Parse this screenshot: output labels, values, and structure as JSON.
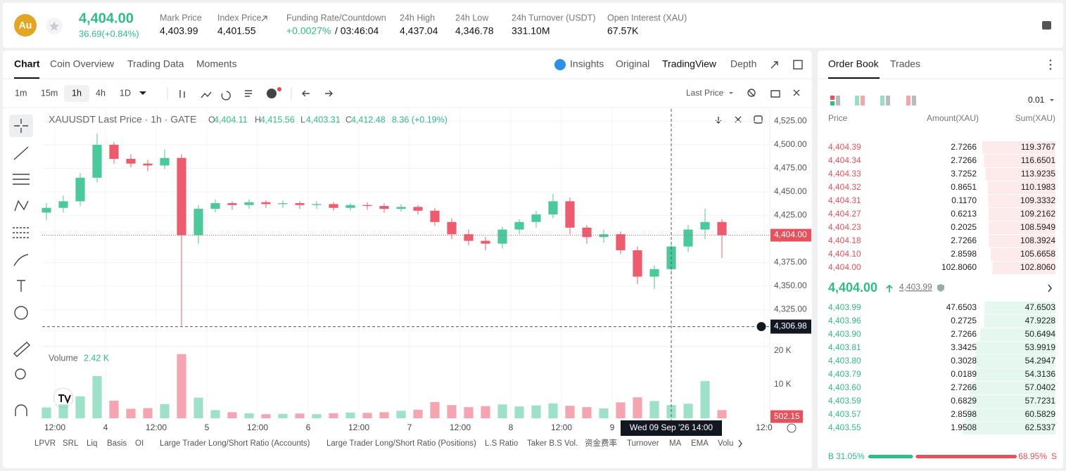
{
  "header": {
    "symbol": "Au",
    "price": "4,404.00",
    "change": "36.69(+0.84%)",
    "stats": [
      {
        "label": "Mark Price",
        "value": "4,403.99"
      },
      {
        "label": "Index Price",
        "value": "4,401.55"
      },
      {
        "label": "Funding Rate/Countdown",
        "value": "+0.0027%",
        "extra": "/ 03:46:04"
      },
      {
        "label": "24h High",
        "value": "4,437.04"
      },
      {
        "label": "24h Low",
        "value": "4,346.78"
      },
      {
        "label": "24h Turnover (USDT)",
        "value": "331.10M"
      },
      {
        "label": "Open Interest (XAU)",
        "value": "67.57K"
      }
    ]
  },
  "chart_tabs": [
    "Chart",
    "Coin Overview",
    "Trading Data",
    "Moments"
  ],
  "view_tabs": [
    "Insights",
    "Original",
    "TradingView",
    "Depth"
  ],
  "intervals": [
    "1m",
    "15m",
    "1h",
    "4h",
    "1D"
  ],
  "price_source": "Last Price",
  "chart": {
    "legend": "XAUUSDT Last Price · 1h · GATE",
    "ohlc": [
      {
        "key": "O",
        "value": "4,404.11"
      },
      {
        "key": "H",
        "value": "4,415.56"
      },
      {
        "key": "L",
        "value": "4,403.31"
      },
      {
        "key": "C",
        "value": "4,412.48"
      }
    ],
    "change": "8.36 (+0.19%)",
    "candles": {
      "x": [
        10,
        14,
        18,
        22,
        26,
        30,
        34,
        38,
        42,
        46,
        50,
        54,
        58,
        62,
        66,
        70,
        74,
        78,
        82,
        86,
        90,
        94,
        98,
        102,
        106,
        110,
        114,
        118,
        122,
        126,
        130,
        134,
        138,
        142,
        146,
        150,
        154,
        158,
        162,
        166,
        170
      ],
      "open": [
        4428,
        4433,
        4440,
        4465,
        4500,
        4485,
        4480,
        4478,
        4486,
        4404,
        4432,
        4438,
        4436,
        4439,
        4437,
        4438,
        4436,
        4437,
        4433,
        4436,
        4435,
        4432,
        4434,
        4430,
        4418,
        4405,
        4398,
        4395,
        4410,
        4418,
        4426,
        4440,
        4412,
        4402,
        4405,
        4388,
        4360,
        4368,
        4392,
        4410,
        4418
      ],
      "high": [
        4438,
        4446,
        4470,
        4512,
        4503,
        4490,
        4484,
        4495,
        4490,
        4436,
        4442,
        4440,
        4442,
        4441,
        4441,
        4440,
        4440,
        4439,
        4438,
        4439,
        4438,
        4437,
        4436,
        4433,
        4422,
        4410,
        4402,
        4413,
        4421,
        4430,
        4448,
        4444,
        4415,
        4410,
        4408,
        4392,
        4372,
        4396,
        4415,
        4432,
        4421
      ],
      "low": [
        4420,
        4428,
        4435,
        4460,
        4480,
        4476,
        4472,
        4474,
        4308,
        4395,
        4428,
        4431,
        4432,
        4433,
        4433,
        4432,
        4432,
        4430,
        4430,
        4431,
        4428,
        4429,
        4426,
        4414,
        4400,
        4393,
        4388,
        4390,
        4405,
        4412,
        4422,
        4405,
        4395,
        4396,
        4384,
        4352,
        4347,
        4362,
        4386,
        4400,
        4380
      ],
      "close": [
        4433,
        4440,
        4465,
        4500,
        4485,
        4480,
        4478,
        4486,
        4404,
        4432,
        4438,
        4436,
        4439,
        4437,
        4438,
        4436,
        4437,
        4433,
        4436,
        4435,
        4432,
        4434,
        4430,
        4418,
        4405,
        4398,
        4395,
        4410,
        4418,
        4426,
        4440,
        4412,
        4402,
        4405,
        4388,
        4360,
        4368,
        4392,
        4410,
        4418,
        4404
      ],
      "volume": [
        3200,
        4100,
        6500,
        12500,
        5200,
        2800,
        3000,
        4200,
        19000,
        6100,
        2400,
        1800,
        1500,
        1200,
        1300,
        1400,
        1200,
        1500,
        1700,
        1600,
        1800,
        2200,
        2500,
        4800,
        3900,
        3300,
        3600,
        4100,
        3500,
        3800,
        4400,
        3700,
        3300,
        2900,
        4700,
        6200,
        5100,
        3900,
        4300,
        11000,
        2420
      ]
    },
    "up_color": "#4cc99a",
    "down_color": "#ec5b6e",
    "xlim": [
      9,
      181
    ],
    "ylim": [
      4288,
      4538
    ],
    "xticks": [
      {
        "value": 12,
        "label": "12:00"
      },
      {
        "value": 24,
        "label": "4"
      },
      {
        "value": 36,
        "label": "12:00"
      },
      {
        "value": 48,
        "label": "5"
      },
      {
        "value": 60,
        "label": "12:00"
      },
      {
        "value": 72,
        "label": "6"
      },
      {
        "value": 84,
        "label": "12:00"
      },
      {
        "value": 96,
        "label": "7"
      },
      {
        "value": 108,
        "label": "12:00"
      },
      {
        "value": 120,
        "label": "8"
      },
      {
        "value": 132,
        "label": "12:00"
      },
      {
        "value": 144,
        "label": "9"
      },
      {
        "value": 180,
        "label": "12:0"
      }
    ],
    "yticks": [
      {
        "value": 4325,
        "label": "4,325.00"
      },
      {
        "value": 4350,
        "label": "4,350.00"
      },
      {
        "value": 4375,
        "label": "4,375.00"
      },
      {
        "value": 4400,
        "label": "4,400.00"
      },
      {
        "value": 4425,
        "label": "4,425.00"
      },
      {
        "value": 4450,
        "label": "4,450.00"
      },
      {
        "value": 4475,
        "label": "4,475.00"
      },
      {
        "value": 4500,
        "label": "4,500.00"
      },
      {
        "value": 4525,
        "label": "4,525.00"
      }
    ],
    "last_price": {
      "value": 4404,
      "label": "4,404.00"
    },
    "crosshair": {
      "x": {
        "value": 158,
        "label": "Wed 09 Sep '26   14:00"
      },
      "y": {
        "value": 4306.98,
        "label": "4,306.98"
      }
    },
    "volume_title": "Volume",
    "volume_value": "2.42 K",
    "vlim": [
      0,
      20800
    ],
    "vticks": [
      {
        "value": 10000,
        "label": "10 K"
      },
      {
        "value": 20000,
        "label": "20 K"
      }
    ],
    "volume_last": {
      "value": 502.15,
      "label": "502.15"
    },
    "grid": true
  },
  "indicators": [
    "LPVR",
    "SRL",
    "Liq",
    "Basis",
    "OI",
    "Large Trader Long/Short Ratio (Accounts)",
    "Large Trader Long/Short Ratio (Positions)",
    "L.S Ratio",
    "Taker B.S Vol.",
    "资金费率",
    "Turnover",
    "MA",
    "EMA",
    "Volu"
  ],
  "order_book": {
    "tabs": [
      "Order Book",
      "Trades"
    ],
    "precision": "0.01",
    "columns": [
      "Price",
      "Amount(XAU)",
      "Sum(XAU)"
    ],
    "asks": [
      [
        "4,404.39",
        "2.7266",
        "119.3767"
      ],
      [
        "4,404.34",
        "2.7266",
        "116.6501"
      ],
      [
        "4,404.33",
        "3.7252",
        "113.9235"
      ],
      [
        "4,404.32",
        "0.8651",
        "110.1983"
      ],
      [
        "4,404.31",
        "0.1170",
        "109.3332"
      ],
      [
        "4,404.27",
        "0.6213",
        "109.2162"
      ],
      [
        "4,404.23",
        "0.2025",
        "108.5949"
      ],
      [
        "4,404.18",
        "2.7266",
        "108.3924"
      ],
      [
        "4,404.10",
        "2.8598",
        "105.6658"
      ],
      [
        "4,404.00",
        "102.8060",
        "102.8060"
      ]
    ],
    "mid_price": "4,404.00",
    "mark_price": "4,403.99",
    "bids": [
      [
        "4,403.99",
        "47.6503",
        "47.6503"
      ],
      [
        "4,403.96",
        "0.2725",
        "47.9228"
      ],
      [
        "4,403.90",
        "2.7266",
        "50.6494"
      ],
      [
        "4,403.81",
        "3.3425",
        "53.9919"
      ],
      [
        "4,403.80",
        "0.3028",
        "54.2947"
      ],
      [
        "4,403.79",
        "0.0189",
        "54.3136"
      ],
      [
        "4,403.60",
        "2.7266",
        "57.0402"
      ],
      [
        "4,403.59",
        "0.6829",
        "57.7231"
      ],
      [
        "4,403.57",
        "2.8598",
        "60.5829"
      ],
      [
        "4,403.55",
        "1.9508",
        "62.5337"
      ]
    ],
    "buy_label": "B",
    "buy": "31.05%",
    "sell": "68.95%",
    "sell_label": "S"
  }
}
